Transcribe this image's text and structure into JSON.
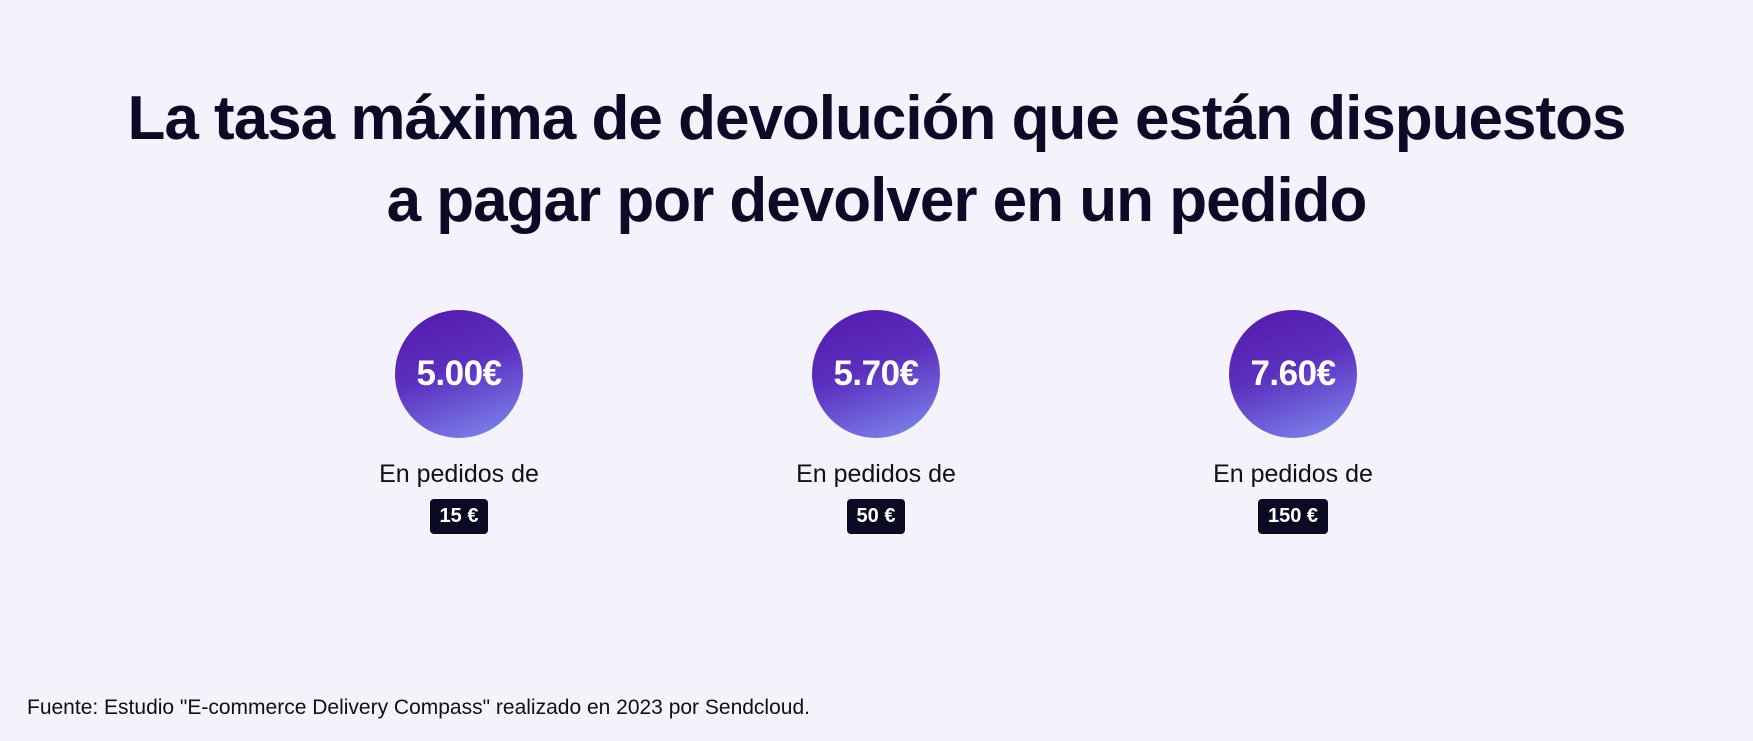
{
  "title_line1": "La tasa máxima de devolución que están dispuestos",
  "title_line2": "a pagar por devolver en un pedido",
  "items": [
    {
      "fee": "5.00€",
      "label": "En pedidos de",
      "order": "15 €"
    },
    {
      "fee": "5.70€",
      "label": "En pedidos de",
      "order": "50 €"
    },
    {
      "fee": "7.60€",
      "label": "En pedidos de",
      "order": "150 €"
    }
  ],
  "source": "Fuente: Estudio \"E-commerce Delivery Compass\" realizado en 2023 por Sendcloud.",
  "colors": {
    "background": "#f4f2fa",
    "text": "#0b0b28",
    "circle_start": "#5418ad",
    "circle_end": "#7f8cf0",
    "badge": "#0a0a23"
  }
}
